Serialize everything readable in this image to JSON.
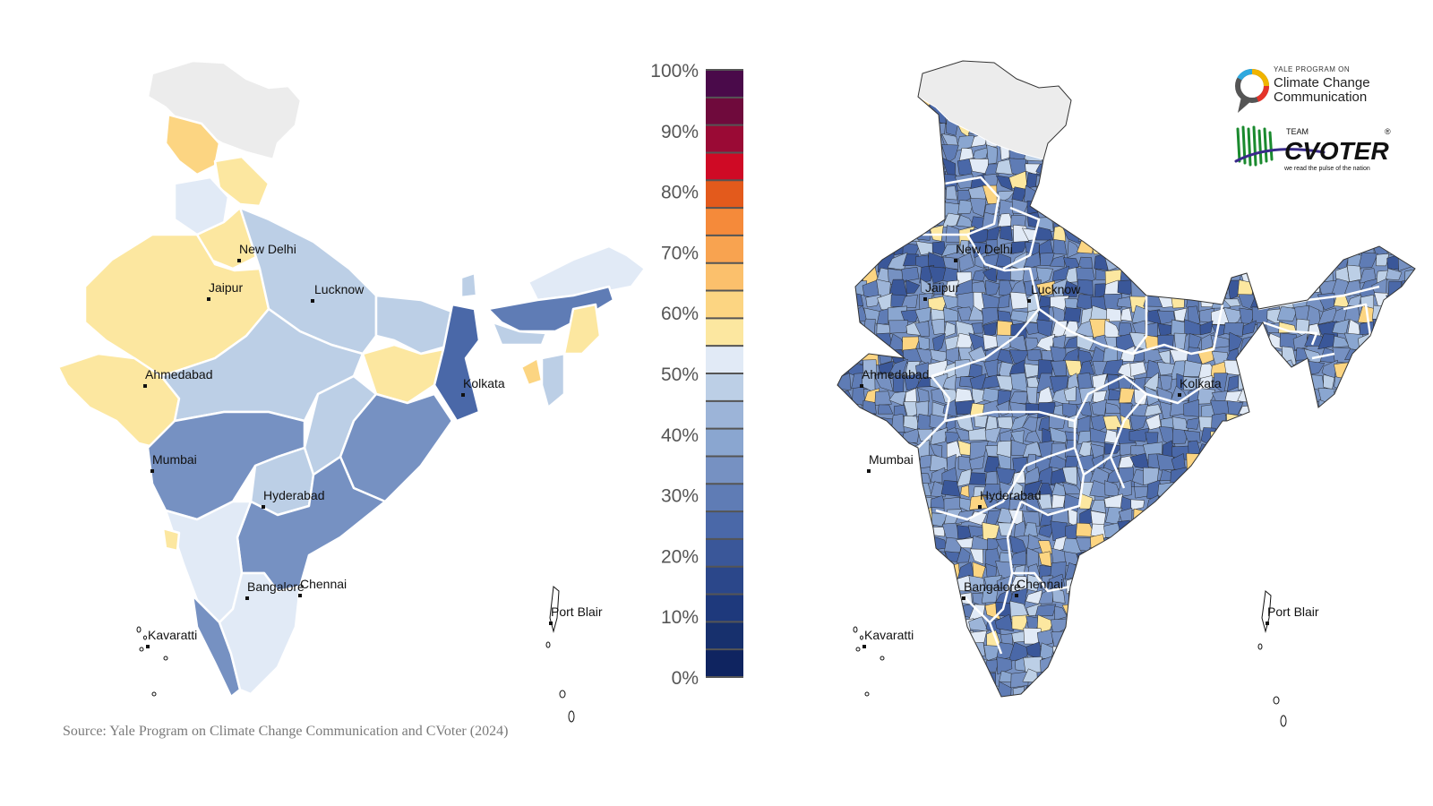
{
  "source_note": "Source: Yale Program on Climate Change Communication and CVoter (2024)",
  "legend": {
    "tick_labels": [
      "100%",
      "90%",
      "80%",
      "70%",
      "60%",
      "50%",
      "40%",
      "30%",
      "20%",
      "10%",
      "0%"
    ],
    "bins": [
      "#4a0a4a",
      "#6f0a3c",
      "#9a0a35",
      "#cf0a25",
      "#e35a1c",
      "#f58a3a",
      "#f8a350",
      "#fbc06c",
      "#fcd582",
      "#fce7a0",
      "#e1eaf6",
      "#bccfe6",
      "#9cb4d8",
      "#8aa6d0",
      "#7691c2",
      "#5f7cb5",
      "#4a68a8",
      "#3a5799",
      "#2b478a",
      "#1e397c",
      "#17306d",
      "#0f2460"
    ]
  },
  "cities": [
    {
      "name": "New Delhi"
    },
    {
      "name": "Jaipur"
    },
    {
      "name": "Lucknow"
    },
    {
      "name": "Ahmedabad"
    },
    {
      "name": "Kolkata"
    },
    {
      "name": "Mumbai"
    },
    {
      "name": "Hyderabad"
    },
    {
      "name": "Bangalore"
    },
    {
      "name": "Chennai"
    },
    {
      "name": "Kavaratti"
    },
    {
      "name": "Port Blair"
    }
  ],
  "logos": {
    "ypccc": {
      "line1": "YALE PROGRAM ON",
      "line2": "Climate Change",
      "line3": "Communication"
    },
    "cvoter": {
      "team": "TEAM",
      "name": "CVOTER",
      "tagline": "we read the pulse of the nation",
      "mark": "®"
    }
  }
}
